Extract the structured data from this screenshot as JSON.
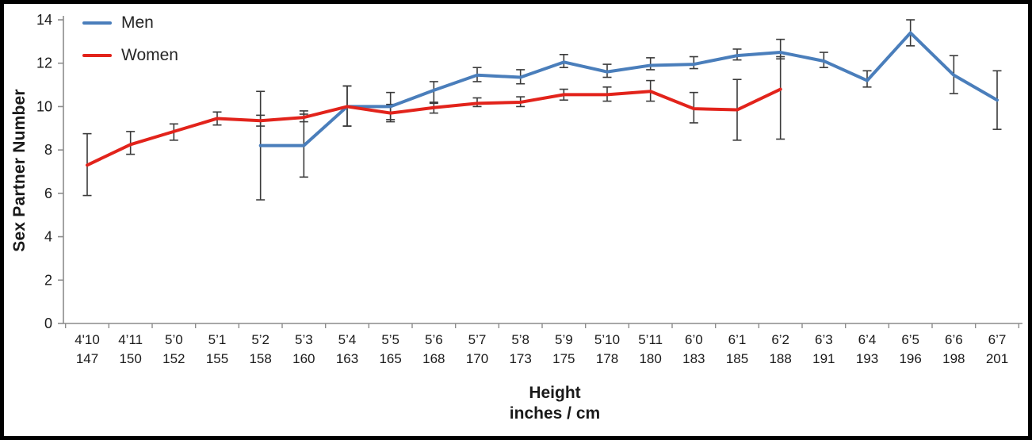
{
  "chart_data": {
    "type": "line",
    "title": "",
    "ylabel": "Sex Partner Number",
    "xlabel_line1": "Height",
    "xlabel_line2": "inches / cm",
    "ylim": [
      0,
      14
    ],
    "yticks": [
      0,
      2,
      4,
      6,
      8,
      10,
      12,
      14
    ],
    "grid": false,
    "legend_position": "top-left",
    "categories_feet": [
      "4'10",
      "4’11",
      "5’0",
      "5’1",
      "5’2",
      "5’3",
      "5’4",
      "5’5",
      "5’6",
      "5’7",
      "5’8",
      "5’9",
      "5’10",
      "5’11",
      "6’0",
      "6’1",
      "6’2",
      "6’3",
      "6’4",
      "6’5",
      "6’6",
      "6’7"
    ],
    "categories_cm": [
      "147",
      "150",
      "152",
      "155",
      "158",
      "160",
      "163",
      "165",
      "168",
      "170",
      "173",
      "175",
      "178",
      "180",
      "183",
      "185",
      "188",
      "191",
      "193",
      "196",
      "198",
      "201"
    ],
    "series": [
      {
        "name": "Men",
        "color": "#4A7EBB",
        "values": [
          null,
          null,
          null,
          null,
          8.2,
          8.2,
          10.0,
          10.0,
          10.75,
          11.45,
          11.35,
          12.05,
          11.6,
          11.9,
          11.95,
          12.35,
          12.5,
          12.1,
          11.2,
          13.4,
          11.45,
          10.3
        ],
        "err_low": [
          null,
          null,
          null,
          null,
          5.7,
          6.75,
          9.1,
          9.4,
          10.2,
          11.15,
          11.05,
          11.8,
          11.35,
          11.7,
          11.75,
          12.15,
          12.2,
          11.8,
          10.9,
          12.8,
          10.6,
          8.95
        ],
        "err_high": [
          null,
          null,
          null,
          null,
          10.7,
          9.65,
          10.95,
          10.65,
          11.15,
          11.8,
          11.7,
          12.4,
          11.95,
          12.25,
          12.3,
          12.65,
          13.1,
          12.5,
          11.65,
          14.0,
          12.35,
          11.65
        ]
      },
      {
        "name": "Women",
        "color": "#E2231B",
        "values": [
          7.3,
          8.25,
          8.85,
          9.45,
          9.35,
          9.5,
          10.0,
          9.7,
          9.95,
          10.15,
          10.2,
          10.55,
          10.55,
          10.7,
          9.9,
          9.85,
          10.8,
          null,
          null,
          null,
          null,
          null
        ],
        "err_low": [
          5.9,
          7.8,
          8.45,
          9.15,
          9.1,
          9.3,
          9.1,
          9.3,
          9.7,
          10.0,
          10.0,
          10.3,
          10.25,
          10.25,
          9.25,
          8.45,
          8.5,
          null,
          null,
          null,
          null,
          null
        ],
        "err_high": [
          8.75,
          8.85,
          9.2,
          9.75,
          9.6,
          9.8,
          10.95,
          10.1,
          10.15,
          10.4,
          10.45,
          10.8,
          10.9,
          11.2,
          10.65,
          11.25,
          12.3,
          null,
          null,
          null,
          null,
          null
        ]
      }
    ],
    "error_bar_color": "#3a3a3a",
    "axis_color": "#8c8c8c",
    "tick_label_color": "#1a1a1a"
  }
}
